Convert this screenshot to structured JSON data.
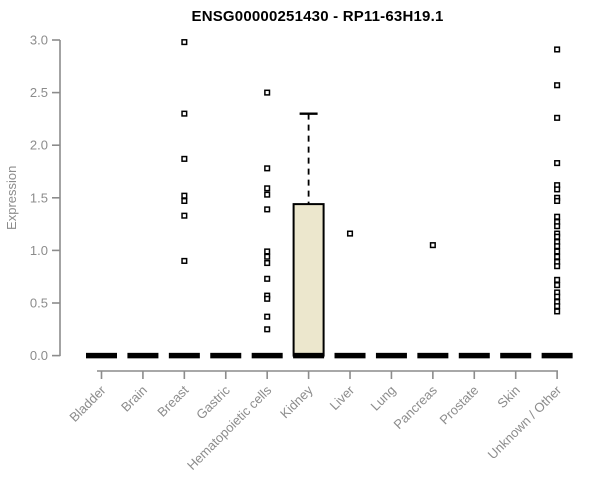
{
  "chart_data": {
    "type": "boxplot",
    "title": "ENSG00000251430 - RP11-63H19.1",
    "ylabel": "Expression",
    "xlabel": "",
    "ylim": [
      0,
      3
    ],
    "ytick_values": [
      0,
      0.5,
      1,
      1.5,
      2,
      2.5,
      3
    ],
    "ytick_labels": [
      "0.0",
      "0.5",
      "1.0",
      "1.5",
      "2.0",
      "2.5",
      "3.0"
    ],
    "grid": false,
    "legend": false,
    "categories": [
      "Bladder",
      "Brain",
      "Breast",
      "Gastric",
      "Hematopoietic cells",
      "Kidney",
      "Liver",
      "Lung",
      "Pancreas",
      "Prostate",
      "Skin",
      "Unknown / Other"
    ],
    "series": [
      {
        "category": "Bladder",
        "median": 0,
        "q1": 0,
        "q3": 0,
        "whisker_low": 0,
        "whisker_high": 0,
        "outliers": []
      },
      {
        "category": "Brain",
        "median": 0,
        "q1": 0,
        "q3": 0,
        "whisker_low": 0,
        "whisker_high": 0,
        "outliers": []
      },
      {
        "category": "Breast",
        "median": 0,
        "q1": 0,
        "q3": 0,
        "whisker_low": 0,
        "whisker_high": 0,
        "outliers": [
          2.98,
          2.3,
          1.87,
          1.52,
          1.47,
          1.33,
          0.9
        ]
      },
      {
        "category": "Gastric",
        "median": 0,
        "q1": 0,
        "q3": 0,
        "whisker_low": 0,
        "whisker_high": 0,
        "outliers": []
      },
      {
        "category": "Hematopoietic cells",
        "median": 0,
        "q1": 0,
        "q3": 0,
        "whisker_low": 0,
        "whisker_high": 0,
        "outliers": [
          2.5,
          1.78,
          1.59,
          1.53,
          1.39,
          0.99,
          0.94,
          0.88,
          0.73,
          0.57,
          0.54,
          0.37,
          0.25
        ]
      },
      {
        "category": "Kidney",
        "median": 0,
        "q1": 0,
        "q3": 1.44,
        "whisker_low": 0,
        "whisker_high": 2.3,
        "outliers": []
      },
      {
        "category": "Liver",
        "median": 0,
        "q1": 0,
        "q3": 0,
        "whisker_low": 0,
        "whisker_high": 0,
        "outliers": [
          1.16
        ]
      },
      {
        "category": "Lung",
        "median": 0,
        "q1": 0,
        "q3": 0,
        "whisker_low": 0,
        "whisker_high": 0,
        "outliers": []
      },
      {
        "category": "Pancreas",
        "median": 0,
        "q1": 0,
        "q3": 0,
        "whisker_low": 0,
        "whisker_high": 0,
        "outliers": [
          1.05
        ]
      },
      {
        "category": "Prostate",
        "median": 0,
        "q1": 0,
        "q3": 0,
        "whisker_low": 0,
        "whisker_high": 0,
        "outliers": []
      },
      {
        "category": "Skin",
        "median": 0,
        "q1": 0,
        "q3": 0,
        "whisker_low": 0,
        "whisker_high": 0,
        "outliers": []
      },
      {
        "category": "Unknown / Other",
        "median": 0,
        "q1": 0,
        "q3": 0,
        "whisker_low": 0,
        "whisker_high": 0,
        "outliers": [
          2.91,
          2.57,
          2.26,
          1.83,
          1.62,
          1.58,
          1.5,
          1.47,
          1.32,
          1.27,
          1.23,
          1.16,
          1.13,
          1.08,
          1.04,
          0.99,
          0.94,
          0.89,
          0.85,
          0.72,
          0.67,
          0.6,
          0.56,
          0.51,
          0.47,
          0.42
        ]
      }
    ],
    "colors": {
      "axis": "#8c8c8c",
      "tick_text": "#8c8c8c",
      "box_fill": "#ece7cd",
      "box_stroke": "#000000",
      "median_bar": "#000000",
      "outlier_stroke": "#000000",
      "outlier_fill": "#ffffff",
      "title_text": "#000000",
      "background": "#ffffff"
    }
  }
}
